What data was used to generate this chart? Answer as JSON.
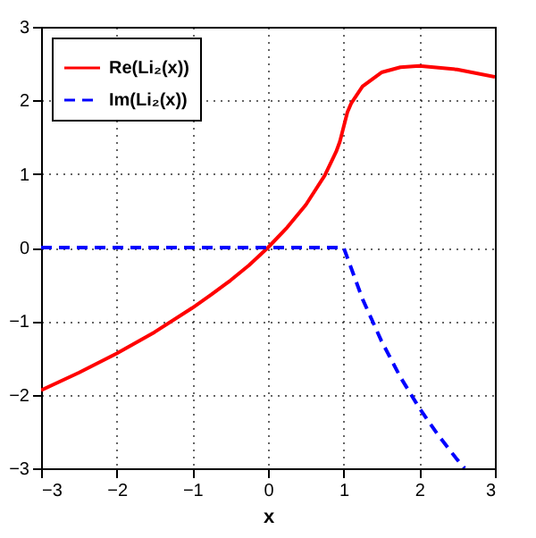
{
  "chart_data": {
    "type": "line",
    "xlabel": "x",
    "xlim": [
      -3,
      3
    ],
    "ylim": [
      -3,
      3
    ],
    "xticks": [
      -3,
      -2,
      -1,
      0,
      1,
      2,
      3
    ],
    "yticks": [
      -3,
      -2,
      -1,
      0,
      1,
      2,
      3
    ],
    "grid": true,
    "legend": "top left",
    "marker": "none",
    "series": [
      {
        "name": "Re(Li₂(x))",
        "color": "#ff0000",
        "line_style": "solid",
        "x": [
          -3,
          -2.5,
          -2,
          -1.5,
          -1,
          -0.75,
          -0.5,
          -0.25,
          0,
          0.25,
          0.5,
          0.75,
          0.9,
          0.95,
          1,
          1.05,
          1.1,
          1.25,
          1.5,
          1.75,
          2,
          2.5,
          3
        ],
        "values": [
          -1.94,
          -1.7,
          -1.44,
          -1.15,
          -0.82,
          -0.64,
          -0.45,
          -0.24,
          0,
          0.27,
          0.58,
          0.98,
          1.3,
          1.44,
          1.64,
          1.84,
          1.96,
          2.19,
          2.38,
          2.45,
          2.47,
          2.42,
          2.32
        ]
      },
      {
        "name": "Im(Li₂(x))",
        "color": "#0000ff",
        "line_style": "dashed",
        "x": [
          -3,
          1,
          1.25,
          1.5,
          1.75,
          2,
          2.25,
          2.5,
          2.6
        ],
        "values": [
          0,
          0,
          -0.7,
          -1.27,
          -1.76,
          -2.18,
          -2.55,
          -2.88,
          -3.0
        ]
      }
    ]
  }
}
